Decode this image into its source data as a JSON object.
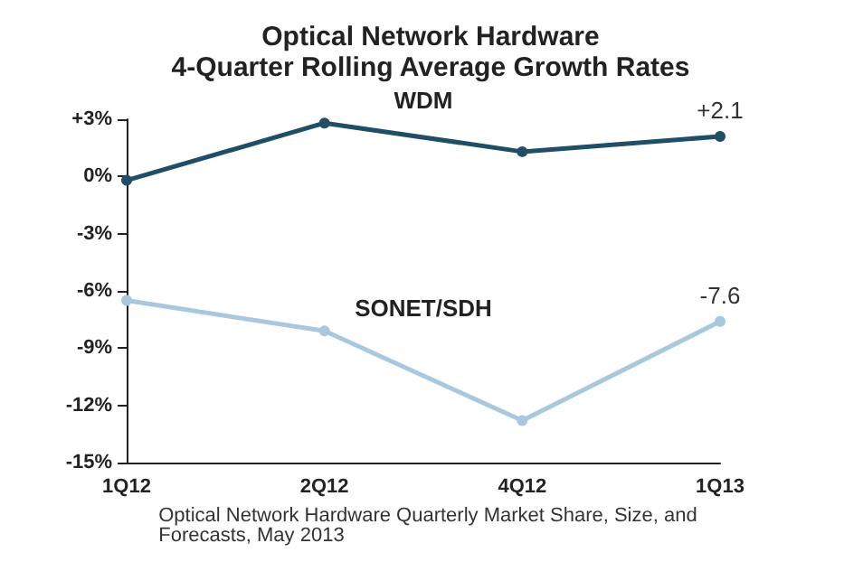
{
  "chart_data": {
    "type": "line",
    "title": "Optical Network Hardware",
    "subtitle": "4-Quarter Rolling Average Growth Rates",
    "categories": [
      "1Q12",
      "2Q12",
      "4Q12",
      "1Q13"
    ],
    "series": [
      {
        "name": "WDM",
        "color": "#1f4e66",
        "values": [
          -0.2,
          2.8,
          1.3,
          2.1
        ],
        "value_labels": [
          null,
          null,
          null,
          "+2.1"
        ]
      },
      {
        "name": "SONET/SDH",
        "color": "#a9c8de",
        "values": [
          -6.5,
          -8.1,
          -12.8,
          -7.6
        ],
        "value_labels": [
          null,
          null,
          null,
          "-7.6"
        ]
      }
    ],
    "ylim": [
      -15,
      3
    ],
    "yticks": [
      {
        "value": 3,
        "label": "+3%"
      },
      {
        "value": 0,
        "label": "0%"
      },
      {
        "value": -3,
        "label": "-3%"
      },
      {
        "value": -6,
        "label": "-6%"
      },
      {
        "value": -9,
        "label": "-9%"
      },
      {
        "value": -12,
        "label": "-12%"
      },
      {
        "value": -15,
        "label": "-15%"
      }
    ],
    "grid": false,
    "legend": false,
    "marker": "circle",
    "line_style": "solid",
    "annotations": [
      "Optical Network Hardware Quarterly Market Share, Size, and Forecasts, May 2013"
    ]
  }
}
